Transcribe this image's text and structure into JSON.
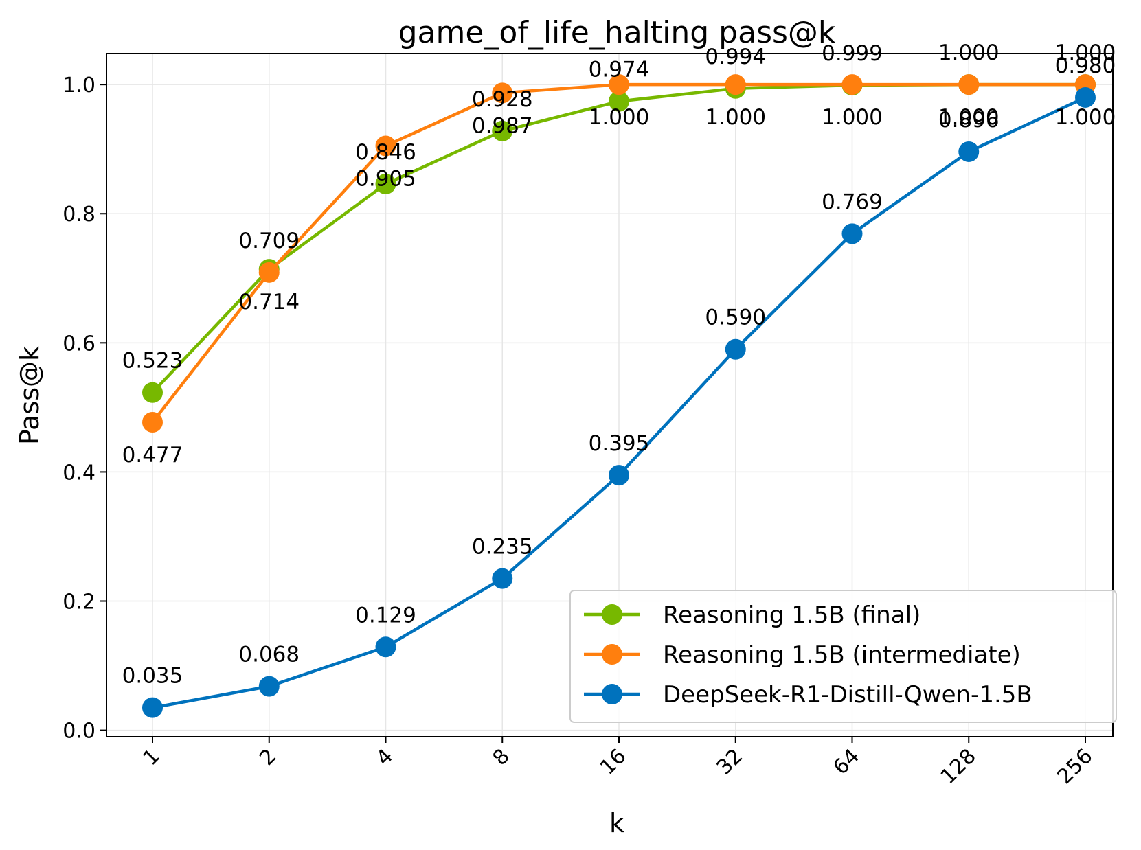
{
  "chart_data": {
    "type": "line",
    "title": "game_of_life_halting pass@k",
    "xlabel": "k",
    "ylabel": "Pass@k",
    "categories": [
      "1",
      "2",
      "4",
      "8",
      "16",
      "32",
      "64",
      "128",
      "256"
    ],
    "ylim": [
      -0.01,
      1.048
    ],
    "yticks": [
      0.0,
      0.2,
      0.4,
      0.6,
      0.8,
      1.0
    ],
    "ytick_labels": [
      "0.0",
      "0.2",
      "0.4",
      "0.6",
      "0.8",
      "1.0"
    ],
    "grid": true,
    "legend_position": "bottom-right",
    "series": [
      {
        "name": "Reasoning 1.5B (final)",
        "color": "#77b800",
        "values": [
          0.523,
          0.714,
          0.846,
          0.928,
          0.974,
          0.994,
          0.999,
          1.0,
          1.0
        ],
        "labels": [
          "0.523",
          "0.714",
          "0.846",
          "0.928",
          "0.974",
          "0.994",
          "0.999",
          "1.000",
          "1.000"
        ],
        "label_pos": [
          "above",
          "below",
          "above",
          "above",
          "above",
          "above",
          "above",
          "above",
          "above"
        ]
      },
      {
        "name": "Reasoning 1.5B (intermediate)",
        "color": "#ff7f0e",
        "values": [
          0.477,
          0.709,
          0.905,
          0.987,
          1.0,
          1.0,
          1.0,
          1.0,
          1.0
        ],
        "labels": [
          "0.477",
          "0.709",
          "0.905",
          "0.987",
          "1.000",
          "1.000",
          "1.000",
          "1.000",
          "1.000"
        ],
        "label_pos": [
          "below",
          "above",
          "below",
          "below",
          "below",
          "below",
          "below",
          "below",
          "below"
        ]
      },
      {
        "name": "DeepSeek-R1-Distill-Qwen-1.5B",
        "color": "#0072bd",
        "values": [
          0.035,
          0.068,
          0.129,
          0.235,
          0.395,
          0.59,
          0.769,
          0.896,
          0.98
        ],
        "labels": [
          "0.035",
          "0.068",
          "0.129",
          "0.235",
          "0.395",
          "0.590",
          "0.769",
          "0.896",
          "0.980"
        ],
        "label_pos": [
          "above",
          "above",
          "above",
          "above",
          "above",
          "above",
          "above",
          "above",
          "above"
        ]
      }
    ]
  }
}
